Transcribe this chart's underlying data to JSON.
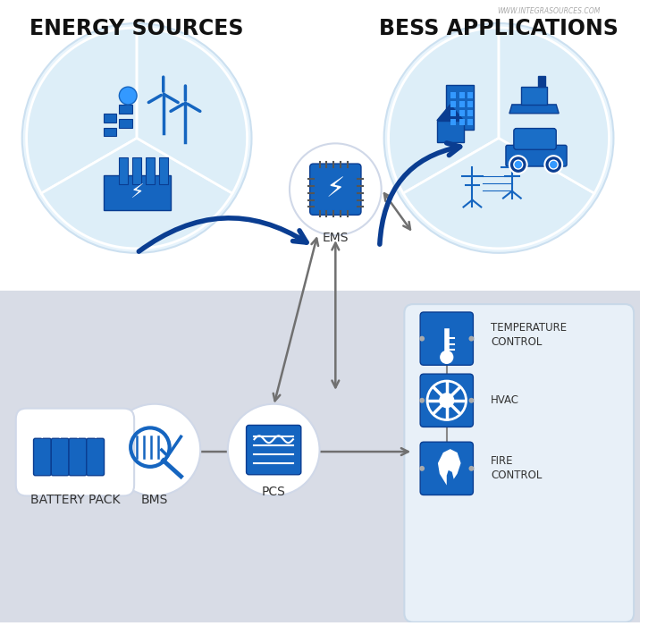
{
  "title_left": "ENERGY SOURCES",
  "title_right": "BESS APPLICATIONS",
  "watermark": "WWW.INTEGRASOURCES.COM",
  "bg_top": "#ffffff",
  "bg_bottom": "#d8dce6",
  "circle_fill": "#e8f4fc",
  "circle_edge": "#cce0f0",
  "bottom_panel_fill": "#e8f0f8",
  "blue_dark": "#0047bb",
  "blue_mid": "#1a6ec7",
  "blue_light": "#3399ff",
  "blue_icon_bg": "#1565C0",
  "gray_arrow": "#808080",
  "dark_blue_arrow": "#0a3d91",
  "label_ems": "EMS",
  "label_battery": "BATTERY PACK",
  "label_bms": "BMS",
  "label_pcs": "PCS",
  "label_temp": "TEMPERATURE\nCONTROL",
  "label_hvac": "HVAC",
  "label_fire": "FIRE\nCONTROL"
}
